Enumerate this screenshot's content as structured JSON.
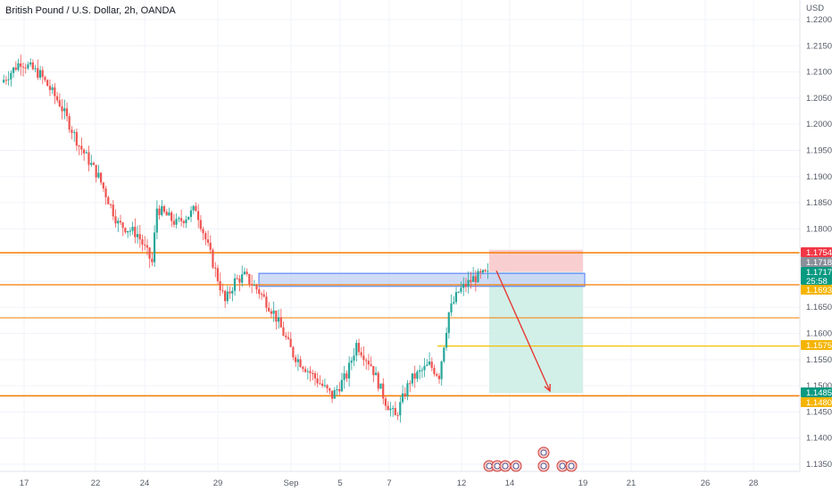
{
  "title": "British Pound / U.S. Dollar, 2h, OANDA",
  "currency": "USD",
  "countdown": "25:58",
  "colors": {
    "up": "#26a69a",
    "down": "#ef5350",
    "level_line": "#f57c00",
    "tp_line": "#f5c000",
    "zone_fill": "#c8d6f5",
    "zone_border": "#2962ff",
    "stop_fill": "#f8c9cc",
    "target_fill": "#cdeee6",
    "arrow": "#e53935"
  },
  "chart_data": {
    "type": "candlestick",
    "symbol": "GBPUSD",
    "timeframe": "2h",
    "ylim": [
      1.133,
      1.222
    ],
    "y_ticks": [
      "1.22000",
      "1.21500",
      "1.21000",
      "1.20500",
      "1.20000",
      "1.19500",
      "1.19000",
      "1.18500",
      "1.18000",
      "1.17500",
      "1.17000",
      "1.16500",
      "1.16000",
      "1.15500",
      "1.15000",
      "1.14500",
      "1.14000",
      "1.13500"
    ],
    "x_labels": [
      "17",
      "22",
      "24",
      "29",
      "Sep",
      "5",
      "7",
      "12",
      "14",
      "19",
      "21",
      "26",
      "28"
    ],
    "price_path": [
      [
        0,
        1.208
      ],
      [
        4,
        1.212
      ],
      [
        8,
        1.2095
      ],
      [
        12,
        1.204
      ],
      [
        16,
        1.196
      ],
      [
        20,
        1.19
      ],
      [
        24,
        1.181
      ],
      [
        28,
        1.179
      ],
      [
        31,
        1.1735
      ],
      [
        32,
        1.184
      ],
      [
        36,
        1.181
      ],
      [
        39,
        1.183
      ],
      [
        40,
        1.184
      ],
      [
        44,
        1.172
      ],
      [
        46,
        1.166
      ],
      [
        48,
        1.17
      ],
      [
        50,
        1.171
      ],
      [
        53,
        1.168
      ],
      [
        56,
        1.164
      ],
      [
        60,
        1.156
      ],
      [
        64,
        1.152
      ],
      [
        68,
        1.148
      ],
      [
        71,
        1.152
      ],
      [
        73,
        1.158
      ],
      [
        76,
        1.154
      ],
      [
        79,
        1.147
      ],
      [
        81,
        1.144
      ],
      [
        84,
        1.151
      ],
      [
        88,
        1.154
      ],
      [
        90,
        1.152
      ],
      [
        92,
        1.164
      ],
      [
        94,
        1.168
      ],
      [
        97,
        1.1705
      ],
      [
        99,
        1.1712
      ]
    ],
    "levels": [
      {
        "price": 1.17543,
        "label": "1.17543"
      },
      {
        "price": 1.17183,
        "label": "1.17183"
      },
      {
        "price": 1.17175,
        "label": "1.17175"
      },
      {
        "price": 1.16931,
        "label": "1.16931"
      },
      {
        "price": 1.15759,
        "label": "1.15759"
      },
      {
        "price": 1.14858,
        "label": "1.14858"
      },
      {
        "price": 1.14808,
        "label": "1.14808"
      }
    ],
    "horizontal_lines": [
      1.17543,
      1.16931,
      1.163,
      1.15759,
      1.14808
    ],
    "supply_zone": [
      1.169,
      1.1715
    ],
    "short_position": {
      "entry": 1.17175,
      "stop": 1.176,
      "target": 1.14858
    },
    "price_arrow": {
      "from": 1.172,
      "to": 1.149
    }
  }
}
